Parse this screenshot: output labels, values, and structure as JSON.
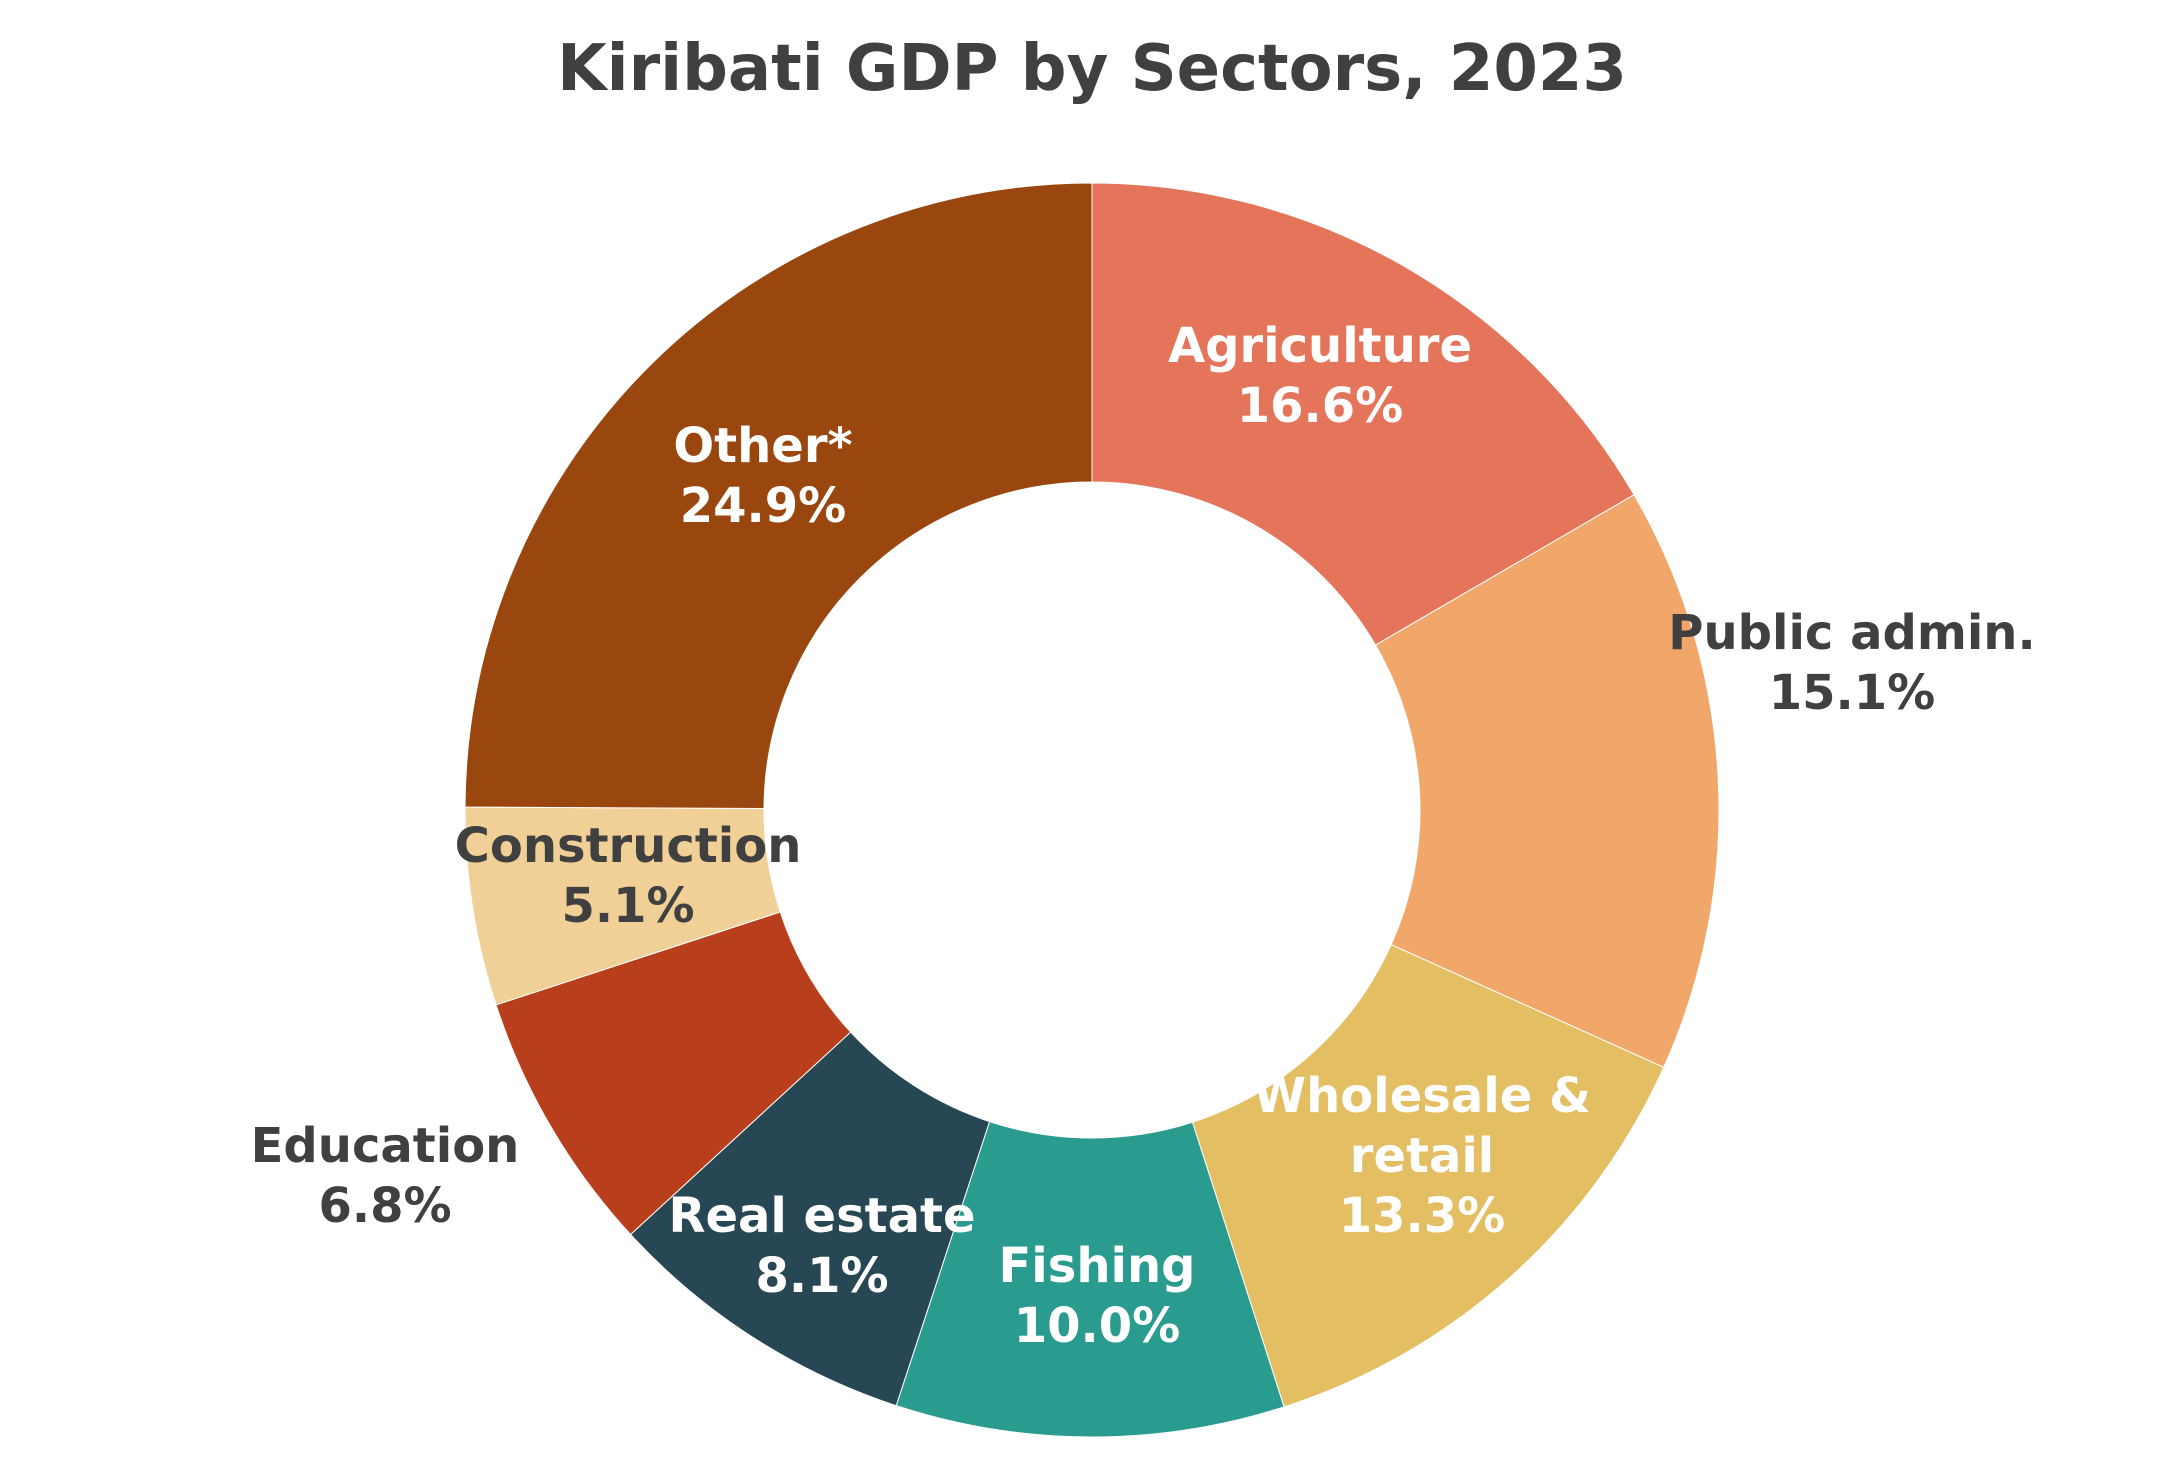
{
  "chart_data": {
    "type": "pie",
    "variant": "donut",
    "title": "Kiribati GDP by Sectors, 2023",
    "slices": [
      {
        "label_lines": [
          "Agriculture"
        ],
        "value": 16.6,
        "value_label": "16.6%",
        "color": "#E5755A",
        "label_color": "#ffffff"
      },
      {
        "label_lines": [
          "Public admin."
        ],
        "value": 15.1,
        "value_label": "15.1%",
        "color": "#F1A66A",
        "label_color": "#404040"
      },
      {
        "label_lines": [
          "Wholesale &",
          "retail"
        ],
        "value": 13.3,
        "value_label": "13.3%",
        "color": "#E3BE63",
        "label_color": "#ffffff"
      },
      {
        "label_lines": [
          "Fishing"
        ],
        "value": 10.0,
        "value_label": "10.0%",
        "color": "#2A9B8F",
        "label_color": "#ffffff"
      },
      {
        "label_lines": [
          "Real estate"
        ],
        "value": 8.1,
        "value_label": "8.1%",
        "color": "#274754",
        "label_color": "#ffffff"
      },
      {
        "label_lines": [
          "Education"
        ],
        "value": 6.8,
        "value_label": "6.8%",
        "color": "#B93F1C",
        "label_color": "#404040"
      },
      {
        "label_lines": [
          "Construction"
        ],
        "value": 5.1,
        "value_label": "5.1%",
        "color": "#F1D097",
        "label_color": "#404040"
      },
      {
        "label_lines": [
          "Other*"
        ],
        "value": 24.9,
        "value_label": "24.9%",
        "color": "#9A470F",
        "label_color": "#ffffff"
      }
    ],
    "start_angle": "12 o'clock",
    "direction": "clockwise",
    "legend": "none",
    "title_color": "#404040"
  }
}
